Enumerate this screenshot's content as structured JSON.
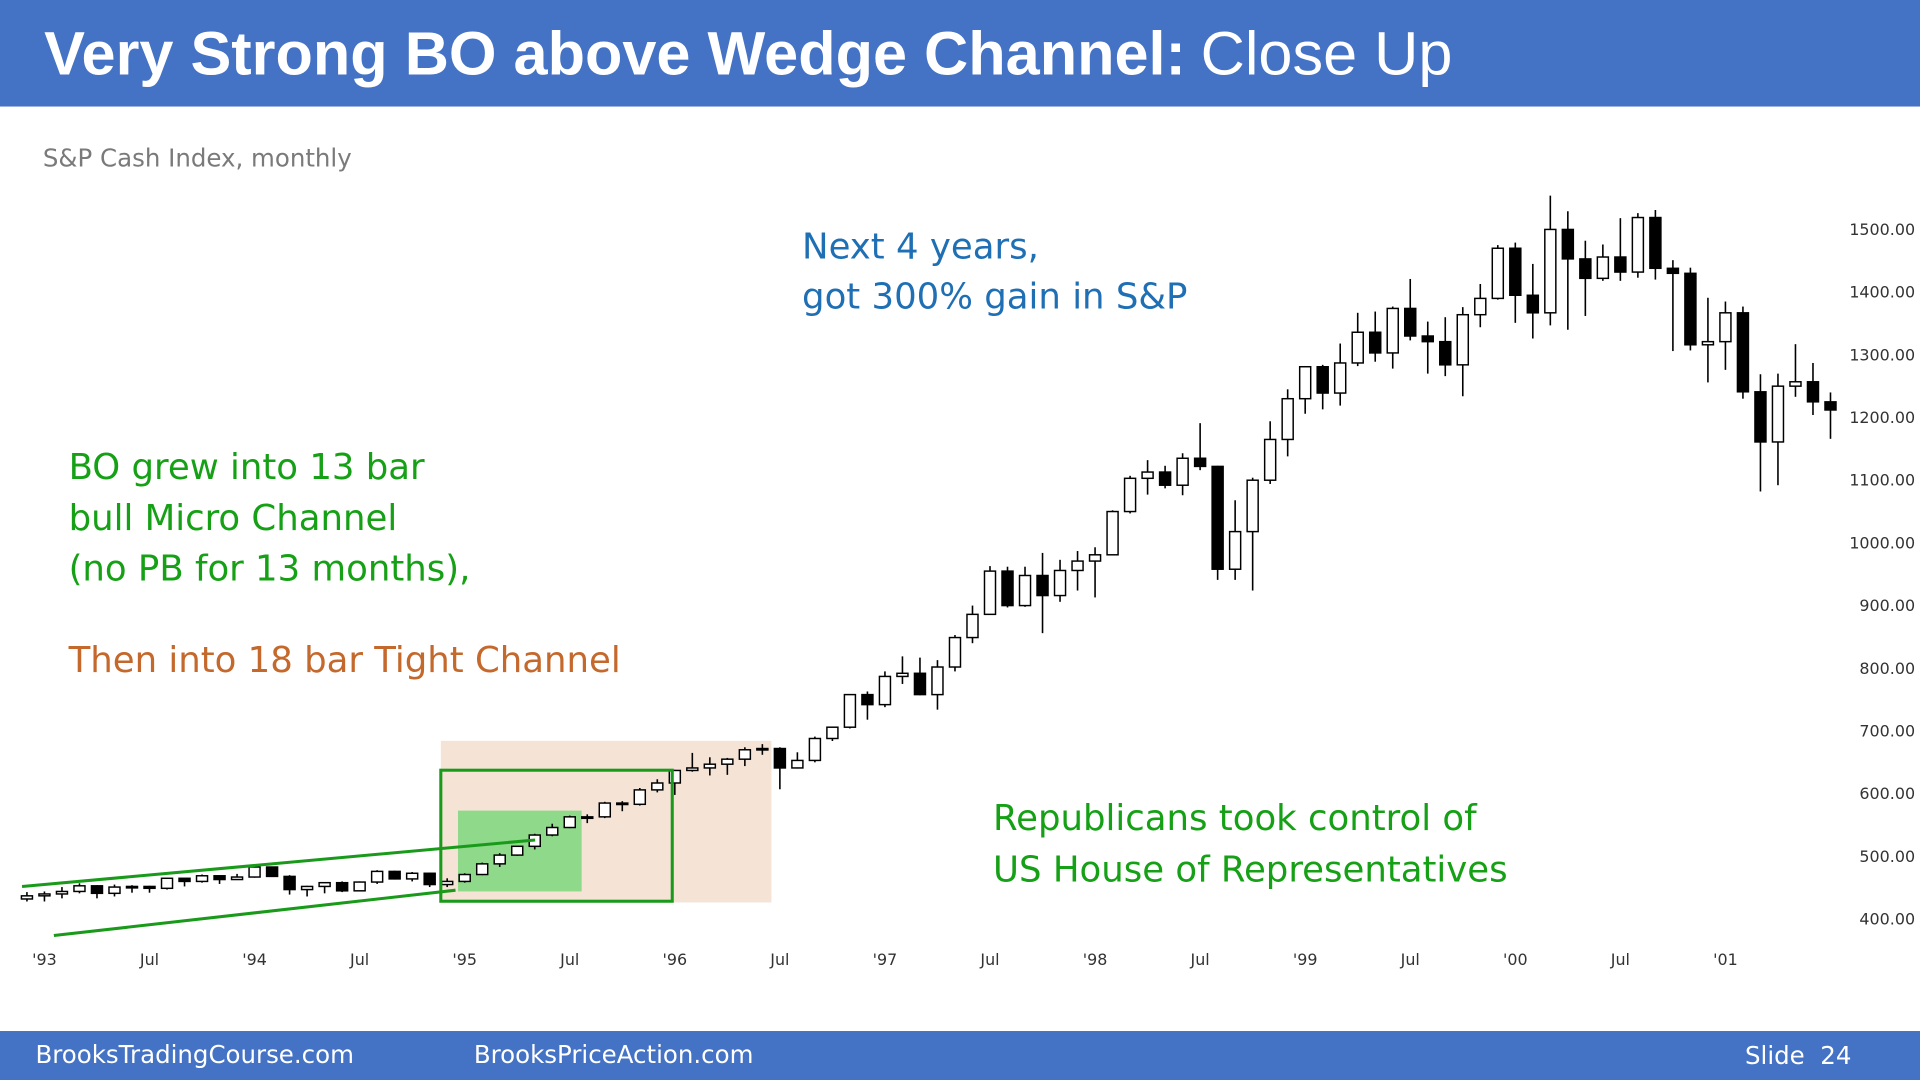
{
  "header": {
    "title_bold": "Very Strong BO above Wedge Channel:",
    "title_rest": "Close Up"
  },
  "chart_data": {
    "type": "candlestick",
    "subtitle": "S&P Cash Index, monthly",
    "categories": [
      null,
      "'93",
      null,
      null,
      null,
      null,
      null,
      "Jul",
      null,
      null,
      null,
      null,
      null,
      "'94",
      null,
      null,
      null,
      null,
      null,
      "Jul",
      null,
      null,
      null,
      null,
      null,
      "'95",
      null,
      null,
      null,
      null,
      null,
      "Jul",
      null,
      null,
      null,
      null,
      null,
      "'96",
      null,
      null,
      null,
      null,
      null,
      "Jul",
      null,
      null,
      null,
      null,
      null,
      "'97",
      null,
      null,
      null,
      null,
      null,
      "Jul",
      null,
      null,
      null,
      null,
      null,
      "'98",
      null,
      null,
      null,
      null,
      null,
      "Jul",
      null,
      null,
      null,
      null,
      null,
      "'99",
      null,
      null,
      null,
      null,
      null,
      "Jul",
      null,
      null,
      null,
      null,
      null,
      "'00",
      null,
      null,
      null,
      null,
      null,
      "Jul",
      null,
      null,
      null,
      null,
      null,
      "'01",
      null,
      null,
      null,
      null,
      null,
      null
    ],
    "open": [
      431,
      436,
      439,
      443,
      452,
      440,
      450,
      451,
      448,
      464,
      459,
      468,
      462,
      466,
      482,
      467,
      446,
      451,
      457,
      444,
      458,
      475,
      463,
      472,
      454,
      459,
      470,
      487,
      501,
      515,
      533,
      545,
      562,
      562,
      584,
      582,
      605,
      616,
      636,
      640,
      646,
      654,
      669,
      671,
      640,
      652,
      687,
      705,
      757,
      741,
      786,
      791,
      757,
      801,
      848,
      885,
      954,
      899,
      947,
      915,
      955,
      970,
      980,
      1049,
      1102,
      1112,
      1091,
      1134,
      1121,
      957,
      1017,
      1099,
      1164,
      1229,
      1280,
      1238,
      1286,
      1335,
      1302,
      1373,
      1329,
      1320,
      1283,
      1363,
      1389,
      1469,
      1394,
      1366,
      1499,
      1452,
      1421,
      1455,
      1431,
      1518,
      1437,
      1429,
      1315,
      1320,
      1366,
      1240,
      1160,
      1249,
      1256,
      1224
    ],
    "high": [
      442,
      443,
      450,
      456,
      453,
      454,
      453,
      452,
      464,
      464,
      470,
      469,
      471,
      483,
      482,
      469,
      452,
      458,
      459,
      459,
      477,
      476,
      474,
      473,
      464,
      472,
      489,
      504,
      515,
      535,
      551,
      564,
      566,
      586,
      587,
      608,
      622,
      637,
      664,
      657,
      656,
      673,
      678,
      673,
      665,
      690,
      706,
      758,
      762,
      794,
      818,
      816,
      812,
      852,
      899,
      962,
      961,
      961,
      983,
      972,
      986,
      992,
      1051,
      1106,
      1131,
      1122,
      1142,
      1190,
      1122,
      1067,
      1103,
      1193,
      1244,
      1281,
      1283,
      1317,
      1366,
      1368,
      1376,
      1420,
      1352,
      1359,
      1375,
      1412,
      1474,
      1478,
      1444,
      1553,
      1528,
      1481,
      1475,
      1517,
      1525,
      1530,
      1450,
      1438,
      1390,
      1384,
      1376,
      1268,
      1269,
      1316,
      1286,
      1239
    ],
    "low": [
      427,
      427,
      432,
      440,
      432,
      435,
      441,
      441,
      446,
      451,
      457,
      455,
      462,
      465,
      466,
      438,
      435,
      440,
      442,
      444,
      455,
      462,
      459,
      450,
      450,
      457,
      469,
      482,
      500,
      510,
      531,
      544,
      552,
      560,
      571,
      580,
      601,
      597,
      634,
      628,
      629,
      643,
      661,
      606,
      639,
      649,
      683,
      703,
      717,
      737,
      774,
      756,
      733,
      794,
      839,
      885,
      896,
      897,
      855,
      905,
      923,
      912,
      979,
      1046,
      1076,
      1086,
      1075,
      1115,
      940,
      940,
      923,
      1093,
      1137,
      1205,
      1212,
      1218,
      1281,
      1288,
      1277,
      1322,
      1269,
      1265,
      1233,
      1343,
      1387,
      1350,
      1325,
      1346,
      1339,
      1361,
      1417,
      1417,
      1422,
      1419,
      1305,
      1306,
      1255,
      1275,
      1229,
      1081,
      1091,
      1232,
      1203,
      1165
    ],
    "close": [
      436,
      439,
      443,
      452,
      440,
      450,
      451,
      448,
      464,
      459,
      468,
      462,
      466,
      482,
      467,
      446,
      451,
      457,
      444,
      458,
      475,
      463,
      472,
      454,
      459,
      470,
      487,
      501,
      515,
      533,
      545,
      562,
      562,
      584,
      582,
      605,
      616,
      636,
      640,
      646,
      654,
      669,
      671,
      640,
      652,
      687,
      705,
      757,
      741,
      786,
      791,
      757,
      801,
      848,
      885,
      954,
      899,
      947,
      915,
      955,
      970,
      980,
      1049,
      1102,
      1112,
      1091,
      1134,
      1121,
      957,
      1017,
      1099,
      1164,
      1229,
      1280,
      1238,
      1286,
      1335,
      1302,
      1373,
      1329,
      1320,
      1283,
      1363,
      1389,
      1469,
      1394,
      1366,
      1499,
      1452,
      1421,
      1455,
      1431,
      1518,
      1437,
      1429,
      1315,
      1320,
      1366,
      1240,
      1160,
      1249,
      1256,
      1224,
      1211
    ],
    "up_color": "#ffffff",
    "down_color": "#000000",
    "ylim": [
      361,
      1572
    ],
    "yticks": [
      {
        "value": 400,
        "label": "400.00"
      },
      {
        "value": 500,
        "label": "500.00"
      },
      {
        "value": 600,
        "label": "600.00"
      },
      {
        "value": 700,
        "label": "700.00"
      },
      {
        "value": 800,
        "label": "800.00"
      },
      {
        "value": 900,
        "label": "900.00"
      },
      {
        "value": 1000,
        "label": "1000.00"
      },
      {
        "value": 1100,
        "label": "1100.00"
      },
      {
        "value": 1200,
        "label": "1200.00"
      },
      {
        "value": 1300,
        "label": "1300.00"
      },
      {
        "value": 1400,
        "label": "1400.00"
      },
      {
        "value": 1500,
        "label": "1500.00"
      }
    ],
    "grid": false,
    "annotations": [
      {
        "lines": [
          "Next 4 years,",
          "got 300% gain in S&P"
        ],
        "color": "#1f6fb4"
      },
      {
        "lines": [
          "BO grew into 13 bar",
          "bull Micro Channel",
          "(no PB for 13 months),"
        ],
        "color": "#16a016"
      },
      {
        "lines": [
          "Then into 18 bar Tight Channel"
        ],
        "color": "#c4682c"
      },
      {
        "lines": [
          "Republicans took control of",
          "US House of Representatives"
        ],
        "color": "#16a016"
      }
    ]
  },
  "footer": {
    "left": "BrooksTradingCourse.com",
    "middle": "BrooksPriceAction.com",
    "right": "Slide  24"
  }
}
